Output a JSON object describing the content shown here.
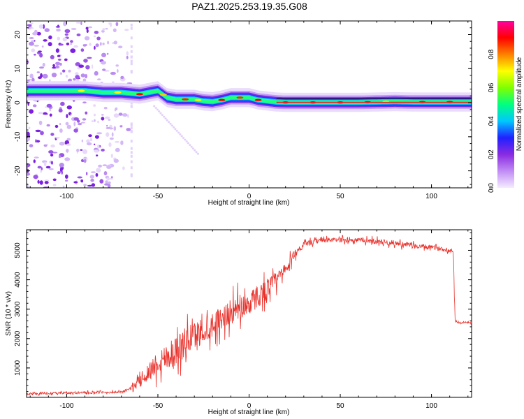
{
  "title": "PAZ1.2025.253.19.35.G08",
  "chart_data": [
    {
      "type": "heatmap",
      "name": "spectrogram",
      "xlabel": "Height of straight line (km)",
      "ylabel": "Frequency (Hz)",
      "xlim": [
        -122,
        122
      ],
      "ylim": [
        -25,
        24
      ],
      "xticks": [
        -100,
        -50,
        0,
        50,
        100
      ],
      "yticks": [
        -20,
        -10,
        0,
        10,
        20
      ],
      "ridge": {
        "x": [
          -122,
          -100,
          -90,
          -80,
          -70,
          -60,
          -50,
          -45,
          -40,
          -30,
          -25,
          -20,
          -15,
          -10,
          -5,
          0,
          5,
          10,
          15,
          20,
          50,
          60,
          80,
          90,
          100,
          122
        ],
        "freq": [
          3.5,
          3.5,
          3.5,
          3.0,
          3.0,
          2.5,
          3.5,
          1.5,
          1.0,
          1.0,
          0.5,
          0.3,
          0.8,
          1.5,
          1.5,
          1.5,
          0.8,
          0.5,
          0.2,
          0.1,
          0.1,
          0.1,
          0.3,
          0.2,
          0.2,
          0.2
        ]
      },
      "colorbar": {
        "label": "Normalized spectral amplitude",
        "min": 0.0,
        "max": 1.0,
        "ticks": [
          0.0,
          0.2,
          0.4,
          0.6,
          0.8
        ],
        "tick_labels": [
          "0.0",
          "0.2",
          "0.4",
          "0.6",
          "0.8"
        ],
        "colors": [
          "#f4ecff",
          "#c18df5",
          "#8a2be2",
          "#2020ff",
          "#00c8ff",
          "#00ff80",
          "#80ff00",
          "#ffff00",
          "#ff8000",
          "#ff0000",
          "#ff00a0"
        ]
      }
    },
    {
      "type": "line",
      "name": "snr",
      "xlabel": "Height of straight line (km)",
      "ylabel": "SNR (10 * v/v)",
      "xlim": [
        -122,
        122
      ],
      "ylim": [
        0,
        5700
      ],
      "xticks": [
        -100,
        -50,
        0,
        50,
        100
      ],
      "yticks": [
        1000,
        2000,
        3000,
        4000,
        5000
      ],
      "color": "#e8302a",
      "envelope": {
        "x": [
          -122,
          -70,
          -65,
          -60,
          -50,
          -40,
          -30,
          -20,
          -10,
          0,
          10,
          20,
          25,
          30,
          40,
          50,
          60,
          70,
          80,
          90,
          100,
          110,
          112,
          113,
          122
        ],
        "mean": [
          120,
          180,
          300,
          550,
          1200,
          1600,
          2100,
          2500,
          2900,
          3200,
          3700,
          4300,
          4900,
          5200,
          5350,
          5350,
          5350,
          5300,
          5250,
          5150,
          5100,
          5000,
          4950,
          2550,
          2550
        ],
        "noise": [
          60,
          60,
          80,
          350,
          700,
          900,
          800,
          700,
          700,
          700,
          600,
          350,
          250,
          150,
          130,
          130,
          120,
          150,
          150,
          150,
          120,
          100,
          100,
          60,
          60
        ]
      }
    }
  ]
}
